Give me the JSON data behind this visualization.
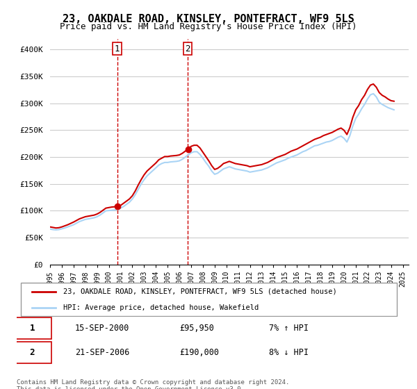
{
  "title": "23, OAKDALE ROAD, KINSLEY, PONTEFRACT, WF9 5LS",
  "subtitle": "Price paid vs. HM Land Registry's House Price Index (HPI)",
  "ylabel": "",
  "ylim": [
    0,
    420000
  ],
  "yticks": [
    0,
    50000,
    100000,
    150000,
    200000,
    250000,
    300000,
    350000,
    400000
  ],
  "ytick_labels": [
    "£0",
    "£50K",
    "£100K",
    "£150K",
    "£200K",
    "£250K",
    "£300K",
    "£350K",
    "£400K"
  ],
  "hpi_color": "#aad4f5",
  "price_color": "#cc0000",
  "vline_color": "#cc0000",
  "background_color": "#ffffff",
  "grid_color": "#cccccc",
  "transaction1": {
    "date": "15-SEP-2000",
    "price": 95950,
    "hpi_pct": "7% ↑ HPI",
    "label": "1",
    "year": 2000.71
  },
  "transaction2": {
    "date": "21-SEP-2006",
    "price": 190000,
    "hpi_pct": "8% ↓ HPI",
    "label": "2",
    "year": 2006.71
  },
  "legend_entry1": "23, OAKDALE ROAD, KINSLEY, PONTEFRACT, WF9 5LS (detached house)",
  "legend_entry2": "HPI: Average price, detached house, Wakefield",
  "footnote": "Contains HM Land Registry data © Crown copyright and database right 2024.\nThis data is licensed under the Open Government Licence v3.0.",
  "hpi_data": {
    "years": [
      1995.0,
      1995.25,
      1995.5,
      1995.75,
      1996.0,
      1996.25,
      1996.5,
      1996.75,
      1997.0,
      1997.25,
      1997.5,
      1997.75,
      1998.0,
      1998.25,
      1998.5,
      1998.75,
      1999.0,
      1999.25,
      1999.5,
      1999.75,
      2000.0,
      2000.25,
      2000.5,
      2000.75,
      2001.0,
      2001.25,
      2001.5,
      2001.75,
      2002.0,
      2002.25,
      2002.5,
      2002.75,
      2003.0,
      2003.25,
      2003.5,
      2003.75,
      2004.0,
      2004.25,
      2004.5,
      2004.75,
      2005.0,
      2005.25,
      2005.5,
      2005.75,
      2006.0,
      2006.25,
      2006.5,
      2006.75,
      2007.0,
      2007.25,
      2007.5,
      2007.75,
      2008.0,
      2008.25,
      2008.5,
      2008.75,
      2009.0,
      2009.25,
      2009.5,
      2009.75,
      2010.0,
      2010.25,
      2010.5,
      2010.75,
      2011.0,
      2011.25,
      2011.5,
      2011.75,
      2012.0,
      2012.25,
      2012.5,
      2012.75,
      2013.0,
      2013.25,
      2013.5,
      2013.75,
      2014.0,
      2014.25,
      2014.5,
      2014.75,
      2015.0,
      2015.25,
      2015.5,
      2015.75,
      2016.0,
      2016.25,
      2016.5,
      2016.75,
      2017.0,
      2017.25,
      2017.5,
      2017.75,
      2018.0,
      2018.25,
      2018.5,
      2018.75,
      2019.0,
      2019.25,
      2019.5,
      2019.75,
      2020.0,
      2020.25,
      2020.5,
      2020.75,
      2021.0,
      2021.25,
      2021.5,
      2021.75,
      2022.0,
      2022.25,
      2022.5,
      2022.75,
      2023.0,
      2023.25,
      2023.5,
      2023.75,
      2024.0,
      2024.25
    ],
    "values": [
      66000,
      65000,
      64500,
      65000,
      66500,
      68000,
      70000,
      72000,
      74000,
      77000,
      80000,
      82000,
      84000,
      85000,
      86000,
      87000,
      89000,
      92000,
      96000,
      100000,
      100500,
      101000,
      101500,
      103000,
      105000,
      108000,
      112000,
      116000,
      122000,
      130000,
      140000,
      150000,
      158000,
      165000,
      170000,
      175000,
      180000,
      185000,
      188000,
      190000,
      190000,
      191000,
      191500,
      192000,
      193000,
      196000,
      200000,
      204000,
      208000,
      210000,
      210000,
      205000,
      198000,
      190000,
      183000,
      174000,
      168000,
      170000,
      174000,
      178000,
      180000,
      182000,
      180000,
      178000,
      177000,
      176000,
      175000,
      174000,
      172000,
      173000,
      174000,
      175000,
      176000,
      178000,
      180000,
      183000,
      186000,
      189000,
      191000,
      193000,
      195000,
      198000,
      200000,
      202000,
      204000,
      207000,
      210000,
      212000,
      215000,
      218000,
      221000,
      222000,
      224000,
      226000,
      228000,
      229000,
      231000,
      234000,
      237000,
      239000,
      235000,
      228000,
      240000,
      258000,
      272000,
      280000,
      290000,
      298000,
      308000,
      316000,
      318000,
      312000,
      302000,
      298000,
      295000,
      292000,
      290000,
      288000
    ]
  },
  "price_paid_data": {
    "years": [
      1995.0,
      1995.25,
      1995.5,
      1995.75,
      1996.0,
      1996.25,
      1996.5,
      1996.75,
      1997.0,
      1997.25,
      1997.5,
      1997.75,
      1998.0,
      1998.25,
      1998.5,
      1998.75,
      1999.0,
      1999.25,
      1999.5,
      1999.75,
      2000.0,
      2000.25,
      2000.5,
      2000.75,
      2001.0,
      2001.25,
      2001.5,
      2001.75,
      2002.0,
      2002.25,
      2002.5,
      2002.75,
      2003.0,
      2003.25,
      2003.5,
      2003.75,
      2004.0,
      2004.25,
      2004.5,
      2004.75,
      2005.0,
      2005.25,
      2005.5,
      2005.75,
      2006.0,
      2006.25,
      2006.5,
      2006.75,
      2007.0,
      2007.25,
      2007.5,
      2007.75,
      2008.0,
      2008.25,
      2008.5,
      2008.75,
      2009.0,
      2009.25,
      2009.5,
      2009.75,
      2010.0,
      2010.25,
      2010.5,
      2010.75,
      2011.0,
      2011.25,
      2011.5,
      2011.75,
      2012.0,
      2012.25,
      2012.5,
      2012.75,
      2013.0,
      2013.25,
      2013.5,
      2013.75,
      2014.0,
      2014.25,
      2014.5,
      2014.75,
      2015.0,
      2015.25,
      2015.5,
      2015.75,
      2016.0,
      2016.25,
      2016.5,
      2016.75,
      2017.0,
      2017.25,
      2017.5,
      2017.75,
      2018.0,
      2018.25,
      2018.5,
      2018.75,
      2019.0,
      2019.25,
      2019.5,
      2019.75,
      2020.0,
      2020.25,
      2020.5,
      2020.75,
      2021.0,
      2021.25,
      2021.5,
      2021.75,
      2022.0,
      2022.25,
      2022.5,
      2022.75,
      2023.0,
      2023.25,
      2023.5,
      2023.75,
      2024.0,
      2024.25
    ],
    "values": [
      70000,
      69000,
      68000,
      68500,
      70000,
      72000,
      74000,
      76500,
      79000,
      82000,
      85000,
      87000,
      89000,
      90000,
      91000,
      92000,
      94000,
      97000,
      101000,
      105000,
      106000,
      107000,
      107500,
      108000,
      110000,
      114000,
      118000,
      122000,
      128000,
      137000,
      148000,
      158000,
      167000,
      174000,
      179000,
      184000,
      189000,
      195000,
      198000,
      201000,
      201000,
      202000,
      202500,
      203000,
      204000,
      207000,
      211000,
      215000,
      220000,
      222000,
      222000,
      217000,
      209000,
      201000,
      193000,
      184000,
      177000,
      179000,
      183000,
      188000,
      190000,
      192000,
      190000,
      188000,
      187000,
      186000,
      185000,
      184000,
      182000,
      183000,
      184000,
      185000,
      186000,
      188000,
      190000,
      193000,
      196000,
      199000,
      201000,
      203000,
      205000,
      208000,
      211000,
      213000,
      215000,
      218000,
      221000,
      224000,
      227000,
      230000,
      233000,
      235000,
      237000,
      240000,
      242000,
      244000,
      246000,
      249000,
      252000,
      254000,
      250000,
      242000,
      255000,
      274000,
      288000,
      296000,
      307000,
      315000,
      326000,
      334000,
      336000,
      330000,
      320000,
      315000,
      312000,
      308000,
      305000,
      304000
    ]
  }
}
